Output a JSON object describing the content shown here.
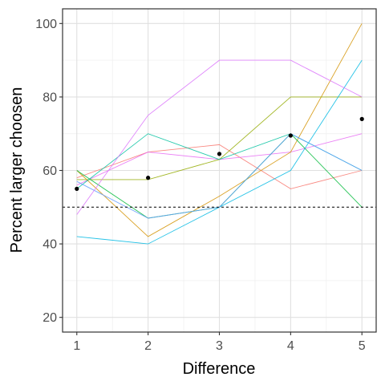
{
  "chart_data": {
    "type": "line",
    "title": "",
    "xlabel": "Difference",
    "ylabel": "Percent larger choosen",
    "x": [
      1,
      2,
      3,
      4,
      5
    ],
    "xticks": [
      "1",
      "2",
      "3",
      "4",
      "5"
    ],
    "yticks": [
      "20",
      "40",
      "60",
      "80",
      "100"
    ],
    "xlim": [
      0.8,
      5.2
    ],
    "ylim": [
      16,
      104
    ],
    "grid": true,
    "legend": "none",
    "reference_line": {
      "y": 50,
      "style": "dashed",
      "color": "#000000"
    },
    "series": [
      {
        "color": "#F8766D",
        "values": [
          58,
          65,
          67,
          55,
          60
        ]
      },
      {
        "color": "#E76BF3",
        "values": [
          56,
          65,
          63,
          65,
          70
        ]
      },
      {
        "color": "#D39200",
        "values": [
          60,
          42,
          53,
          65,
          100
        ]
      },
      {
        "color": "#93AA00",
        "values": [
          57.5,
          57.5,
          63,
          80,
          80
        ]
      },
      {
        "color": "#00BA38",
        "values": [
          60,
          47,
          50,
          70,
          50
        ]
      },
      {
        "color": "#00C19F",
        "values": [
          55,
          70,
          63,
          70,
          60
        ]
      },
      {
        "color": "#00B9E3",
        "values": [
          42,
          40,
          50,
          60,
          90
        ]
      },
      {
        "color": "#619CFF",
        "values": [
          57,
          47,
          50,
          70,
          60
        ]
      },
      {
        "color": "#DB72FB",
        "values": [
          48,
          75,
          90,
          90,
          80
        ]
      }
    ],
    "mean_points": {
      "color": "#000000",
      "values": [
        55,
        58,
        64.5,
        69.5,
        74
      ]
    }
  }
}
